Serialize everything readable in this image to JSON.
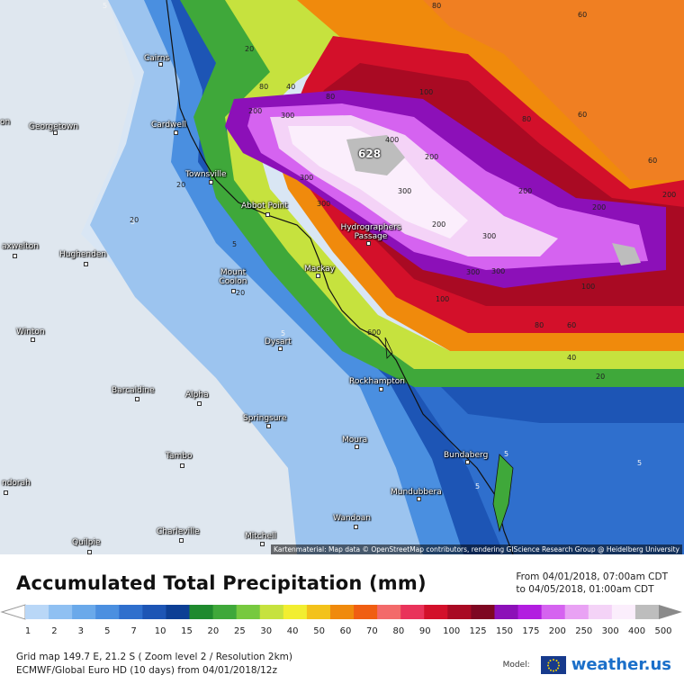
{
  "map": {
    "cities": [
      {
        "name": "Cairns"
      },
      {
        "name": "Georgetown"
      },
      {
        "name": "Cardwell"
      },
      {
        "name": "Townsville"
      },
      {
        "name": "Abbot Point"
      },
      {
        "name": "Hydrographers Passage"
      },
      {
        "name": "Hughenden"
      },
      {
        "name": "Mount Coolon"
      },
      {
        "name": "Mackay"
      },
      {
        "name": "Winton"
      },
      {
        "name": "Dysart"
      },
      {
        "name": "Barcaldine"
      },
      {
        "name": "Alpha"
      },
      {
        "name": "Rockhampton"
      },
      {
        "name": "Springsure"
      },
      {
        "name": "Moura"
      },
      {
        "name": "Tambo"
      },
      {
        "name": "Bundaberg"
      },
      {
        "name": "Mundubbera"
      },
      {
        "name": "Wandoan"
      },
      {
        "name": "Charleville"
      },
      {
        "name": "Mitchell"
      },
      {
        "name": "Quilpie"
      },
      {
        "name": "axwelton"
      },
      {
        "name": "ndorah"
      },
      {
        "name": "on"
      }
    ],
    "peak_value": "628",
    "contour_labels": [
      "5",
      "5",
      "20",
      "80",
      "80",
      "40",
      "80",
      "60",
      "60",
      "80",
      "60",
      "200",
      "300",
      "300",
      "400",
      "300",
      "300",
      "300",
      "200",
      "200",
      "100",
      "200",
      "200",
      "300",
      "200",
      "300",
      "100",
      "100",
      "80",
      "60",
      "40",
      "20",
      "20",
      "5",
      "5",
      "20",
      "5",
      "20",
      "5",
      "5",
      "600"
    ],
    "attribution": "Kartenmaterial: Map data © OpenStreetMap contributors, rendering GIScience Research Group @ Heidelberg University"
  },
  "legend": {
    "title": "Accumulated Total Precipitation (mm)",
    "from": "From 04/01/2018, 07:00am CDT",
    "to": "to 04/05/2018, 01:00am CDT",
    "scale_values": [
      "1",
      "2",
      "3",
      "5",
      "7",
      "10",
      "15",
      "20",
      "25",
      "30",
      "40",
      "50",
      "60",
      "70",
      "80",
      "90",
      "100",
      "125",
      "150",
      "175",
      "200",
      "250",
      "300",
      "400",
      "500"
    ],
    "scale_colors": [
      "#b9d7f7",
      "#8fc0f2",
      "#6aa9ea",
      "#4b8fe0",
      "#2f6fcd",
      "#1d55b5",
      "#0d3f95",
      "#1f8a2e",
      "#3fa83a",
      "#77c93f",
      "#c6e23e",
      "#f2ee30",
      "#f3c21a",
      "#f08a0c",
      "#f05e12",
      "#f36a6a",
      "#e9335a",
      "#d3102a",
      "#a90a23",
      "#7e0722",
      "#8c10b8",
      "#b21ee0",
      "#d563f0",
      "#e9a2f4",
      "#f4d3f7",
      "#fbeefc",
      "#bdbdbd"
    ],
    "grid_info": "Grid map 149.7 E, 21.2 S ( Zoom level 2 / Resolution 2km)",
    "model_info": "ECMWF/Global Euro HD (10 days) from 04/01/2018/12z",
    "model_label": "Model:",
    "brand": "weather.us"
  }
}
